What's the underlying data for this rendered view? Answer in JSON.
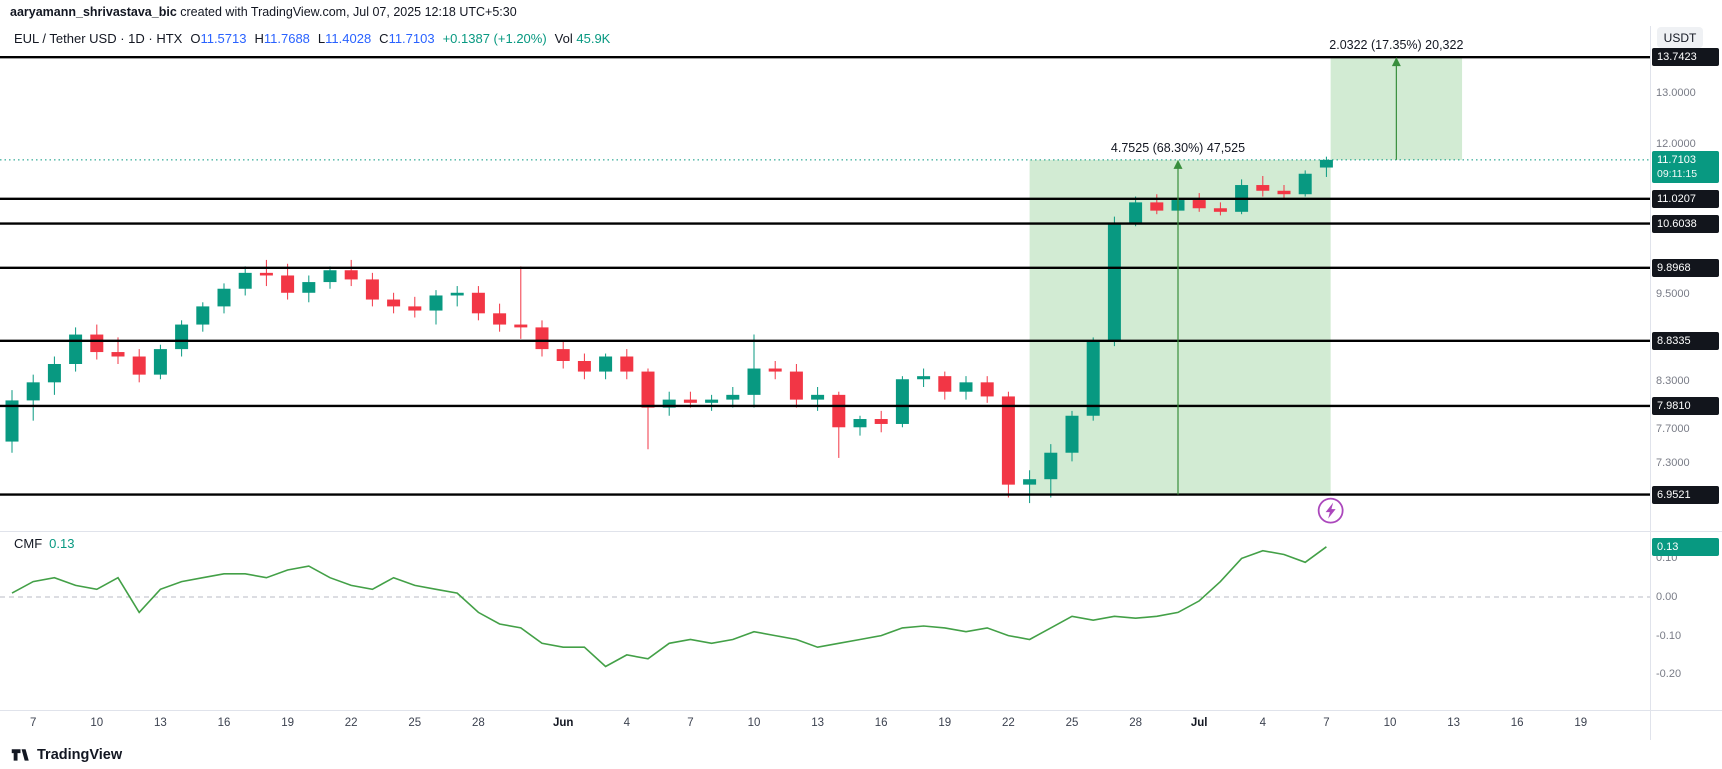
{
  "attribution": {
    "user": "aaryamann_shrivastava_bic",
    "rest": " created with TradingView.com, Jul 07, 2025 12:18 UTC+5:30"
  },
  "header": {
    "title": "EUL / Tether USD · 1D · HTX",
    "open_label": "O",
    "open": "11.5713",
    "high_label": "H",
    "high": "11.7688",
    "low_label": "L",
    "low": "11.4028",
    "close_label": "C",
    "close": "11.7103",
    "change": "+0.1387 (+1.20%)",
    "volume_label": "Vol",
    "volume": "45.9K"
  },
  "toolbar": {
    "currency_button": "USDT"
  },
  "price_scale": {
    "last_price_badge": {
      "price": "11.7103",
      "countdown": "09:11:15"
    },
    "level_badges": [
      {
        "price": 13.7423,
        "label": "13.7423"
      },
      {
        "price": 11.0207,
        "label": "11.0207"
      },
      {
        "price": 10.6038,
        "label": "10.6038"
      },
      {
        "price": 9.8968,
        "label": "9.8968"
      },
      {
        "price": 8.8335,
        "label": "8.8335"
      },
      {
        "price": 7.981,
        "label": "7.9810"
      },
      {
        "price": 6.9521,
        "label": "6.9521"
      }
    ],
    "grid_labels": [
      {
        "price": 13.0,
        "label": "13.0000"
      },
      {
        "price": 12.0,
        "label": "12.0000"
      },
      {
        "price": 9.5,
        "label": "9.5000"
      },
      {
        "price": 8.3,
        "label": "8.3000"
      },
      {
        "price": 7.7,
        "label": "7.7000"
      },
      {
        "price": 7.3,
        "label": "7.3000"
      }
    ]
  },
  "indicator": {
    "name": "CMF",
    "value": "0.13",
    "badge": "0.13",
    "axis_labels": [
      {
        "value": 0.1,
        "label": "0.10"
      },
      {
        "value": 0.0,
        "label": "0.00"
      },
      {
        "value": -0.1,
        "label": "-0.10"
      },
      {
        "value": -0.2,
        "label": "-0.20"
      }
    ]
  },
  "measurements": [
    {
      "label": "4.7525 (68.30%) 47,525",
      "value": "4.7525",
      "percent": "68.30%",
      "volume": "47,525",
      "from_price": 6.9521,
      "to_price": 11.7103,
      "start_index": 48,
      "end_index": 62.2,
      "arrow_index": 55
    },
    {
      "label": "2.0322 (17.35%) 20,322",
      "value": "2.0322",
      "percent": "17.35%",
      "volume": "20,322",
      "from_price": 11.7103,
      "to_price": 13.7423,
      "start_index": 62.2,
      "end_index": 68.4,
      "arrow_index": 65.3
    }
  ],
  "marker": {
    "shape": "lightning-bolt",
    "color": "#ab47bc",
    "index": 62.2,
    "price": 6.78
  },
  "time_axis": [
    {
      "label": "7",
      "index": 1
    },
    {
      "label": "10",
      "index": 4
    },
    {
      "label": "13",
      "index": 7
    },
    {
      "label": "16",
      "index": 10
    },
    {
      "label": "19",
      "index": 13
    },
    {
      "label": "22",
      "index": 16
    },
    {
      "label": "25",
      "index": 19
    },
    {
      "label": "28",
      "index": 22
    },
    {
      "label": "Jun",
      "index": 26,
      "month": true
    },
    {
      "label": "4",
      "index": 29
    },
    {
      "label": "7",
      "index": 32
    },
    {
      "label": "10",
      "index": 35
    },
    {
      "label": "13",
      "index": 38
    },
    {
      "label": "16",
      "index": 41
    },
    {
      "label": "19",
      "index": 44
    },
    {
      "label": "22",
      "index": 47
    },
    {
      "label": "25",
      "index": 50
    },
    {
      "label": "28",
      "index": 53
    },
    {
      "label": "Jul",
      "index": 56,
      "month": true
    },
    {
      "label": "4",
      "index": 59
    },
    {
      "label": "7",
      "index": 62
    },
    {
      "label": "10",
      "index": 65
    },
    {
      "label": "13",
      "index": 68
    },
    {
      "label": "16",
      "index": 71
    },
    {
      "label": "19",
      "index": 74
    }
  ],
  "footer": {
    "logo_text": "TradingView"
  },
  "chart_data": {
    "type": "candlestick",
    "symbol": "EUL / Tether USD",
    "exchange": "HTX",
    "interval": "1D",
    "scale": "log",
    "start_date": "2025-05-06",
    "end_date": "2025-07-07",
    "price_axis_range": [
      6.6,
      14.4
    ],
    "candles": [
      [
        7.55,
        8.18,
        7.42,
        8.05
      ],
      [
        8.05,
        8.38,
        7.8,
        8.28
      ],
      [
        8.28,
        8.62,
        8.12,
        8.52
      ],
      [
        8.52,
        9.02,
        8.42,
        8.92
      ],
      [
        8.92,
        9.06,
        8.58,
        8.68
      ],
      [
        8.68,
        8.88,
        8.52,
        8.62
      ],
      [
        8.62,
        8.72,
        8.28,
        8.38
      ],
      [
        8.38,
        8.78,
        8.32,
        8.72
      ],
      [
        8.72,
        9.12,
        8.62,
        9.06
      ],
      [
        9.06,
        9.38,
        8.96,
        9.32
      ],
      [
        9.32,
        9.66,
        9.22,
        9.58
      ],
      [
        9.58,
        9.92,
        9.48,
        9.82
      ],
      [
        9.82,
        10.02,
        9.62,
        9.78
      ],
      [
        9.78,
        9.96,
        9.42,
        9.52
      ],
      [
        9.52,
        9.78,
        9.38,
        9.68
      ],
      [
        9.68,
        9.92,
        9.58,
        9.86
      ],
      [
        9.86,
        10.02,
        9.62,
        9.72
      ],
      [
        9.72,
        9.82,
        9.32,
        9.42
      ],
      [
        9.42,
        9.52,
        9.22,
        9.32
      ],
      [
        9.32,
        9.46,
        9.16,
        9.26
      ],
      [
        9.26,
        9.56,
        9.06,
        9.48
      ],
      [
        9.48,
        9.62,
        9.32,
        9.52
      ],
      [
        9.52,
        9.62,
        9.12,
        9.22
      ],
      [
        9.22,
        9.36,
        8.96,
        9.06
      ],
      [
        9.06,
        9.92,
        8.86,
        9.02
      ],
      [
        9.02,
        9.12,
        8.62,
        8.72
      ],
      [
        8.72,
        8.82,
        8.46,
        8.56
      ],
      [
        8.56,
        8.66,
        8.32,
        8.42
      ],
      [
        8.42,
        8.66,
        8.32,
        8.62
      ],
      [
        8.62,
        8.72,
        8.32,
        8.42
      ],
      [
        8.42,
        8.46,
        7.46,
        7.96
      ],
      [
        7.96,
        8.16,
        7.86,
        8.06
      ],
      [
        8.06,
        8.16,
        7.96,
        8.02
      ],
      [
        8.02,
        8.12,
        7.92,
        8.06
      ],
      [
        8.06,
        8.22,
        7.96,
        8.12
      ],
      [
        8.12,
        8.92,
        7.96,
        8.46
      ],
      [
        8.46,
        8.56,
        8.32,
        8.42
      ],
      [
        8.42,
        8.52,
        7.96,
        8.06
      ],
      [
        8.06,
        8.22,
        7.92,
        8.12
      ],
      [
        8.12,
        8.16,
        7.36,
        7.72
      ],
      [
        7.72,
        7.86,
        7.62,
        7.82
      ],
      [
        7.82,
        7.92,
        7.66,
        7.76
      ],
      [
        7.76,
        8.36,
        7.72,
        8.32
      ],
      [
        8.32,
        8.46,
        8.22,
        8.36
      ],
      [
        8.36,
        8.42,
        8.06,
        8.16
      ],
      [
        8.16,
        8.36,
        8.06,
        8.28
      ],
      [
        8.28,
        8.36,
        8.02,
        8.1
      ],
      [
        8.1,
        8.16,
        6.92,
        7.06
      ],
      [
        7.06,
        7.22,
        6.86,
        7.12
      ],
      [
        7.12,
        7.52,
        6.92,
        7.42
      ],
      [
        7.42,
        7.92,
        7.32,
        7.86
      ],
      [
        7.86,
        8.88,
        7.8,
        8.82
      ],
      [
        8.82,
        10.72,
        8.76,
        10.62
      ],
      [
        10.62,
        11.06,
        10.56,
        10.96
      ],
      [
        10.96,
        11.1,
        10.76,
        10.82
      ],
      [
        10.82,
        11.06,
        10.76,
        11.0
      ],
      [
        11.0,
        11.12,
        10.8,
        10.86
      ],
      [
        10.86,
        10.96,
        10.74,
        10.8
      ],
      [
        10.8,
        11.36,
        10.76,
        11.26
      ],
      [
        11.26,
        11.42,
        11.06,
        11.16
      ],
      [
        11.16,
        11.26,
        11.0,
        11.1
      ],
      [
        11.1,
        11.52,
        11.06,
        11.46
      ],
      [
        11.5713,
        11.7688,
        11.4028,
        11.7103
      ]
    ],
    "indicator": {
      "type": "line",
      "name": "CMF",
      "axis_range": [
        -0.24,
        0.16
      ],
      "values": [
        0.01,
        0.04,
        0.05,
        0.03,
        0.02,
        0.05,
        -0.04,
        0.02,
        0.04,
        0.05,
        0.06,
        0.06,
        0.05,
        0.07,
        0.08,
        0.05,
        0.03,
        0.02,
        0.05,
        0.03,
        0.02,
        0.01,
        -0.04,
        -0.07,
        -0.08,
        -0.12,
        -0.13,
        -0.13,
        -0.18,
        -0.15,
        -0.16,
        -0.12,
        -0.11,
        -0.12,
        -0.11,
        -0.09,
        -0.1,
        -0.11,
        -0.13,
        -0.12,
        -0.11,
        -0.1,
        -0.08,
        -0.075,
        -0.08,
        -0.09,
        -0.08,
        -0.1,
        -0.11,
        -0.08,
        -0.05,
        -0.06,
        -0.05,
        -0.055,
        -0.05,
        -0.04,
        -0.01,
        0.04,
        0.1,
        0.12,
        0.11,
        0.09,
        0.13
      ]
    },
    "colors": {
      "up": "#089981",
      "down": "#F23645",
      "cmf_line": "#43a047",
      "arrow": "#388e3c",
      "box_fill": "rgba(76,175,80,0.25)",
      "level_line": "#000000",
      "accent_blue": "#2962FF"
    }
  }
}
